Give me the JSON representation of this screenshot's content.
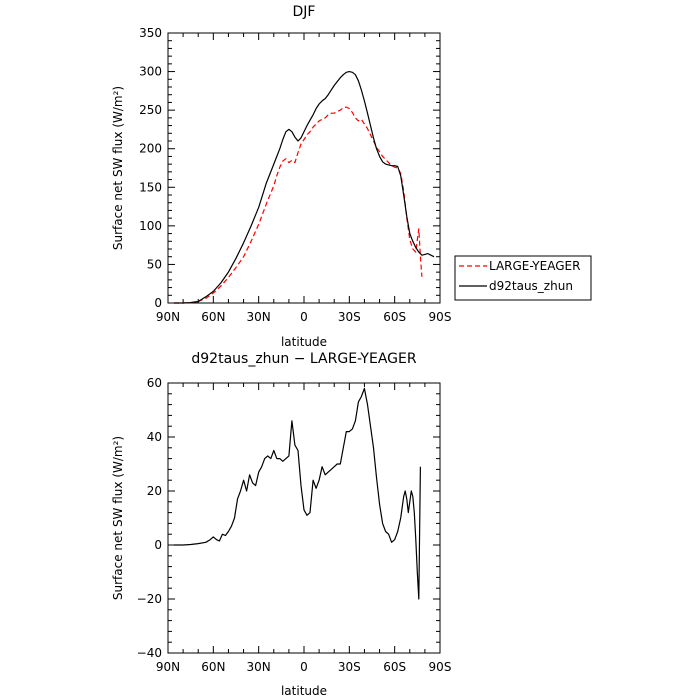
{
  "chart_data": [
    {
      "type": "line",
      "title": "DJF",
      "xlabel": "latitude",
      "ylabel": "Surface net SW flux (W/m²)",
      "xlim": [
        90,
        -90
      ],
      "ylim": [
        0,
        350
      ],
      "x_ticks": [
        90,
        60,
        30,
        0,
        -30,
        -60,
        -90
      ],
      "x_tick_labels": [
        "90N",
        "60N",
        "30N",
        "0",
        "30S",
        "60S",
        "90S"
      ],
      "y_ticks": [
        0,
        50,
        100,
        150,
        200,
        250,
        300,
        350
      ],
      "y_tick_labels": [
        "0",
        "50",
        "100",
        "150",
        "200",
        "250",
        "300",
        "350"
      ],
      "legend_position": "outside-right",
      "series": [
        {
          "name": "LARGE-YEAGER",
          "color": "#ff0000",
          "dash": "dashed",
          "x": [
            86,
            80,
            75,
            70,
            65,
            60,
            55,
            50,
            45,
            40,
            35,
            30,
            25,
            20,
            18,
            16,
            14,
            12,
            10,
            8,
            6,
            4,
            2,
            0,
            -2,
            -4,
            -6,
            -8,
            -10,
            -12,
            -14,
            -16,
            -18,
            -20,
            -22,
            -24,
            -26,
            -28,
            -30,
            -32,
            -34,
            -36,
            -38,
            -40,
            -42,
            -44,
            -46,
            -48,
            -50,
            -52,
            -54,
            -56,
            -58,
            -60,
            -62,
            -64,
            -66,
            -68,
            -70,
            -72,
            -74,
            -75,
            -76,
            -77,
            -78
          ],
          "values": [
            0,
            0,
            0.5,
            2,
            6,
            13,
            22,
            33,
            46,
            60,
            80,
            102,
            128,
            152,
            165,
            176,
            184,
            187,
            182,
            185,
            182,
            195,
            206,
            212,
            218,
            222,
            228,
            232,
            236,
            238,
            240,
            244,
            246,
            246,
            248,
            250,
            253,
            254,
            252,
            247,
            240,
            236,
            238,
            232,
            226,
            218,
            210,
            202,
            196,
            190,
            186,
            182,
            178,
            176,
            175,
            168,
            145,
            110,
            82,
            70,
            66,
            82,
            96,
            60,
            34
          ]
        },
        {
          "name": "d92taus_zhun",
          "color": "#000000",
          "dash": "solid",
          "x": [
            86,
            80,
            75,
            70,
            65,
            60,
            55,
            50,
            45,
            40,
            35,
            30,
            25,
            20,
            18,
            16,
            14,
            12,
            10,
            8,
            6,
            4,
            2,
            0,
            -2,
            -4,
            -6,
            -8,
            -10,
            -12,
            -14,
            -16,
            -18,
            -20,
            -22,
            -24,
            -26,
            -28,
            -30,
            -32,
            -34,
            -36,
            -38,
            -40,
            -42,
            -44,
            -46,
            -48,
            -50,
            -52,
            -54,
            -56,
            -58,
            -60,
            -62,
            -64,
            -66,
            -68,
            -70,
            -72,
            -74,
            -76,
            -78,
            -80,
            -82,
            -84,
            -86
          ],
          "values": [
            0,
            0,
            0.5,
            2,
            8,
            15,
            26,
            40,
            58,
            78,
            100,
            124,
            155,
            180,
            190,
            200,
            212,
            222,
            225,
            222,
            215,
            210,
            214,
            222,
            230,
            237,
            244,
            252,
            258,
            262,
            265,
            270,
            276,
            282,
            287,
            292,
            296,
            299,
            300,
            299,
            296,
            288,
            276,
            262,
            246,
            230,
            214,
            200,
            190,
            183,
            180,
            179,
            178,
            178,
            177,
            165,
            140,
            112,
            90,
            80,
            72,
            66,
            62,
            63,
            64,
            62,
            60
          ]
        }
      ]
    },
    {
      "type": "line",
      "title": "d92taus_zhun − LARGE-YEAGER",
      "xlabel": "latitude",
      "ylabel": "Surface net SW flux (W/m²)",
      "xlim": [
        90,
        -90
      ],
      "ylim": [
        -40,
        60
      ],
      "x_ticks": [
        90,
        60,
        30,
        0,
        -30,
        -60,
        -90
      ],
      "x_tick_labels": [
        "90N",
        "60N",
        "30N",
        "0",
        "30S",
        "60S",
        "90S"
      ],
      "y_ticks": [
        -40,
        -20,
        0,
        20,
        40,
        60
      ],
      "y_tick_labels": [
        "−40",
        "−20",
        "0",
        "20",
        "40",
        "60"
      ],
      "series": [
        {
          "color": "#000000",
          "dash": "solid",
          "x": [
            86,
            80,
            75,
            70,
            65,
            62,
            60,
            58,
            56,
            54,
            52,
            50,
            48,
            46,
            44,
            42,
            40,
            38,
            36,
            34,
            32,
            30,
            28,
            26,
            24,
            22,
            20,
            18,
            16,
            14,
            12,
            10,
            8,
            6,
            4,
            2,
            0,
            -2,
            -4,
            -6,
            -8,
            -10,
            -12,
            -14,
            -16,
            -18,
            -20,
            -22,
            -24,
            -26,
            -28,
            -30,
            -32,
            -34,
            -36,
            -38,
            -40,
            -42,
            -44,
            -46,
            -48,
            -50,
            -52,
            -54,
            -56,
            -58,
            -60,
            -62,
            -64,
            -66,
            -67,
            -68,
            -69,
            -70,
            -71,
            -72,
            -73,
            -74,
            -75,
            -76,
            -77
          ],
          "values": [
            0,
            0,
            0.2,
            0.5,
            1,
            2,
            3,
            2,
            1.5,
            4,
            3.5,
            5,
            7,
            10,
            17,
            20,
            24,
            20,
            26,
            23,
            22,
            27,
            29,
            32,
            33,
            32,
            35,
            32,
            32,
            31,
            32,
            33,
            46,
            37,
            35,
            22,
            13,
            11,
            12,
            24,
            21,
            24,
            29,
            26,
            27,
            28,
            29,
            30,
            30,
            36,
            42,
            42,
            43,
            46,
            53,
            55,
            58,
            52,
            44,
            36,
            25,
            15,
            8,
            5,
            4,
            1,
            2,
            5,
            10,
            18,
            20,
            17,
            12,
            16,
            20,
            18,
            12,
            2,
            -10,
            -20,
            29
          ]
        }
      ]
    }
  ]
}
